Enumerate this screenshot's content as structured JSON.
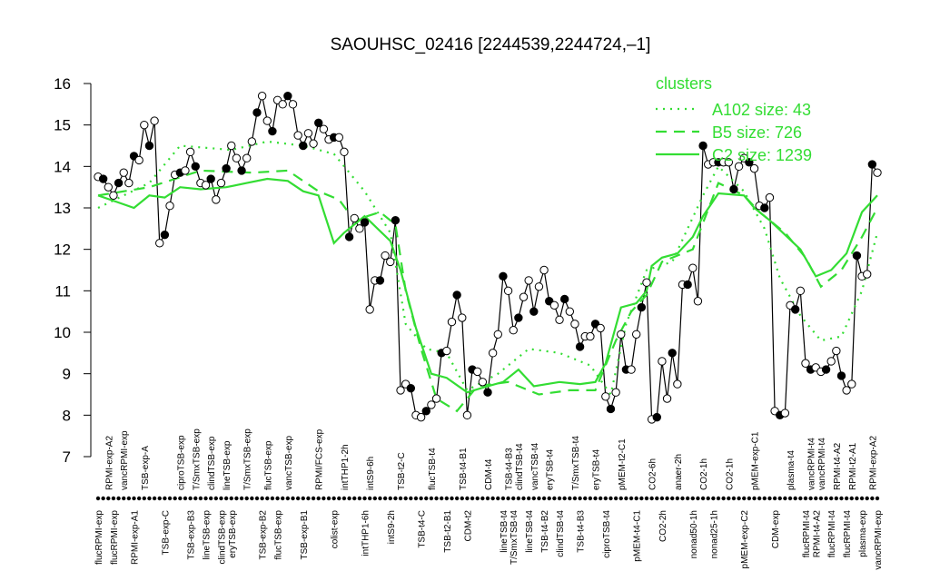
{
  "chart_data": {
    "type": "line",
    "title": "SAOUHSC_02416 [2244539,2244724,–1]",
    "categories": [
      "flucRPMI-exp",
      null,
      "RPMI-exp-A2",
      "flucRPMI-exp",
      null,
      "vancRPMI-exp",
      null,
      "RPMI-exp-A1",
      null,
      "TSB-exp-A",
      null,
      null,
      null,
      "TSB-exp-C",
      null,
      null,
      "ciproTSB-exp",
      null,
      "TSB-exp-B3",
      "T/SmxTSB-exp",
      null,
      "lineTSB-exp",
      "clindTSB-exp",
      null,
      "clindTSB-exp",
      "lineTSB-exp",
      "eryTSB-exp",
      null,
      null,
      "T/SmxTSB-exp",
      null,
      null,
      "TSB-exp-B2",
      "flucTSB-exp",
      null,
      "flucTSB-exp",
      null,
      "vancTSB-exp",
      null,
      null,
      "TSB-exp-B1",
      null,
      null,
      "RPMI/FCS-exp",
      null,
      null,
      "colist-exp",
      null,
      "intTHP1-2h",
      null,
      null,
      null,
      "intTHP1-6h",
      "intS9-6h",
      null,
      null,
      null,
      "intS9-2h",
      null,
      "TSB-t2-C",
      null,
      null,
      null,
      "TSB-t4-C",
      null,
      "flucTSB-t4",
      null,
      null,
      "TSB-t2-B1",
      null,
      null,
      "TSB-t4-B1",
      "CDM-t2",
      null,
      null,
      null,
      "CDM-t4",
      null,
      null,
      "lineTSB-t4",
      "TSB-t4-B3",
      "T/SmxTSB-t4",
      "clindTSB-t4",
      null,
      "lineTSB-t4",
      "vancTSB-t4",
      null,
      "TSB-t4-B2",
      "eryTSB-t4",
      null,
      "clindTSB-t4",
      null,
      null,
      "T/SmxTSB-t4",
      "TSB-t4-B3",
      null,
      null,
      "eryTSB-t4",
      null,
      "ciproTSB-t4",
      null,
      null,
      "pMEM-t2-C1",
      null,
      null,
      "pMEM-t4-C1",
      null,
      null,
      "CO2-6h",
      null,
      "CO2-2h",
      null,
      null,
      "anaer-2h",
      null,
      null,
      "nonad50-1h",
      null,
      "CO2-1h",
      null,
      "nonad25-1h",
      null,
      null,
      "CO2-1h",
      null,
      null,
      "pMEM-exp-C2",
      null,
      "pMEM-exp-C1",
      null,
      null,
      null,
      "CDM-exp",
      null,
      null,
      "plasma-t4",
      null,
      null,
      "flucRPMI-t4",
      "vancRPMI-t4",
      "RPMI-t4-A2",
      "vancRPMI-t4",
      null,
      "flucRPMI-t4",
      "RPMI-t4-A2",
      null,
      "flucRPMI-t4",
      "RPMI-t2-A1",
      null,
      "plasma-exp",
      null,
      "RPMI-exp-A2",
      "vancRPMI-exp"
    ],
    "series": [
      {
        "color": "#000000",
        "values": [
          13.75,
          13.7,
          13.5,
          13.3,
          13.6,
          13.85,
          13.6,
          14.25,
          14.15,
          15.0,
          14.5,
          15.1,
          12.15,
          12.35,
          13.05,
          13.8,
          13.85,
          13.9,
          14.35,
          14.0,
          13.6,
          13.55,
          13.7,
          13.2,
          13.6,
          13.95,
          14.5,
          14.2,
          13.9,
          14.2,
          14.6,
          15.3,
          15.7,
          15.1,
          14.85,
          15.6,
          15.5,
          15.7,
          15.5,
          14.75,
          14.5,
          14.8,
          14.55,
          15.05,
          14.9,
          14.65,
          14.7,
          14.7,
          14.35,
          12.3,
          12.75,
          12.5,
          12.65,
          10.55,
          11.25,
          11.25,
          11.85,
          11.7,
          12.7,
          8.6,
          8.75,
          8.65,
          8.0,
          7.95,
          8.1,
          8.25,
          8.4,
          9.5,
          9.55,
          10.25,
          10.9,
          10.35,
          8.0,
          9.1,
          9.05,
          8.8,
          8.55,
          9.5,
          9.95,
          11.35,
          11.0,
          10.05,
          10.35,
          10.85,
          11.25,
          10.5,
          11.1,
          11.5,
          10.75,
          10.65,
          10.3,
          10.8,
          10.5,
          10.2,
          9.65,
          9.9,
          9.9,
          10.2,
          10.1,
          8.45,
          8.15,
          8.55,
          9.95,
          9.1,
          9.1,
          9.95,
          10.6,
          11.2,
          7.9,
          7.95,
          9.3,
          8.4,
          9.5,
          8.75,
          11.15,
          11.15,
          11.55,
          10.75,
          14.5,
          14.05,
          14.1,
          14.1,
          14.1,
          14.1,
          13.45,
          14.0,
          14.2,
          14.1,
          13.95,
          13.05,
          13.0,
          13.25,
          8.1,
          8.0,
          8.05,
          10.65,
          10.55,
          11.0,
          9.25,
          9.1,
          9.15,
          9.05,
          9.1,
          9.3,
          9.55,
          8.95,
          8.6,
          8.75,
          11.85,
          11.35,
          11.4,
          14.05,
          13.85
        ]
      },
      {
        "name": "A102 size: 43",
        "color": "#33dd33",
        "dash": "dotted",
        "x": [
          0,
          10,
          16,
          26,
          33,
          40,
          46,
          52,
          57,
          60,
          64,
          68,
          72,
          78,
          84,
          90,
          96,
          100,
          103,
          107,
          112,
          118,
          121,
          126,
          130,
          133,
          137,
          141,
          145,
          149,
          152
        ],
        "values": [
          13.0,
          13.6,
          14.5,
          14.4,
          14.6,
          14.5,
          14.3,
          13.4,
          12.4,
          10.2,
          9.6,
          9.5,
          8.6,
          9.0,
          9.6,
          9.5,
          9.2,
          8.5,
          10.2,
          11.5,
          11.7,
          13.3,
          14.0,
          13.4,
          12.5,
          11.3,
          10.4,
          9.8,
          9.9,
          11.0,
          12.4
        ]
      },
      {
        "name": "B5 size: 726",
        "color": "#33dd33",
        "dash": "dashed",
        "x": [
          0,
          10,
          20,
          30,
          37,
          43,
          47,
          50,
          55,
          58,
          60,
          63,
          66,
          70,
          74,
          80,
          86,
          92,
          97,
          101,
          104,
          107,
          110,
          116,
          121,
          126,
          129,
          134,
          138,
          141,
          145,
          149,
          152
        ],
        "values": [
          13.3,
          13.5,
          13.9,
          13.85,
          13.9,
          13.4,
          13.2,
          12.7,
          12.9,
          12.6,
          11.0,
          9.6,
          8.4,
          8.1,
          8.7,
          8.8,
          8.5,
          8.6,
          8.6,
          9.8,
          10.5,
          10.9,
          11.7,
          12.0,
          13.6,
          13.3,
          12.9,
          12.4,
          11.8,
          11.1,
          11.5,
          12.3,
          13.0
        ]
      },
      {
        "name": "C2 size: 1239",
        "color": "#33dd33",
        "dash": "solid",
        "x": [
          0,
          7,
          10,
          13,
          16,
          20,
          25,
          29,
          33,
          37,
          40,
          43,
          46,
          48,
          52,
          57,
          59,
          62,
          65,
          68,
          72,
          76,
          79,
          82,
          85,
          90,
          94,
          97,
          99,
          102,
          105,
          107,
          108,
          110,
          113,
          116,
          118,
          121,
          126,
          128,
          131,
          134,
          137,
          140,
          143,
          146,
          149,
          152
        ],
        "values": [
          13.3,
          13.0,
          13.3,
          13.25,
          13.5,
          13.45,
          13.5,
          13.6,
          13.7,
          13.65,
          13.4,
          13.3,
          12.15,
          12.4,
          12.8,
          12.2,
          11.5,
          10.1,
          9.0,
          8.9,
          8.55,
          8.7,
          8.8,
          9.1,
          8.7,
          8.8,
          8.75,
          8.8,
          9.25,
          10.6,
          10.7,
          11.0,
          11.6,
          11.8,
          11.9,
          12.3,
          12.8,
          13.35,
          13.3,
          13.0,
          12.7,
          12.35,
          12.0,
          11.35,
          11.5,
          11.9,
          12.9,
          13.3
        ]
      }
    ],
    "ylim": [
      7,
      16
    ],
    "yticks": [
      7,
      8,
      9,
      10,
      11,
      12,
      13,
      14,
      15,
      16
    ],
    "legend_title": "clusters",
    "legend": "top-right"
  }
}
